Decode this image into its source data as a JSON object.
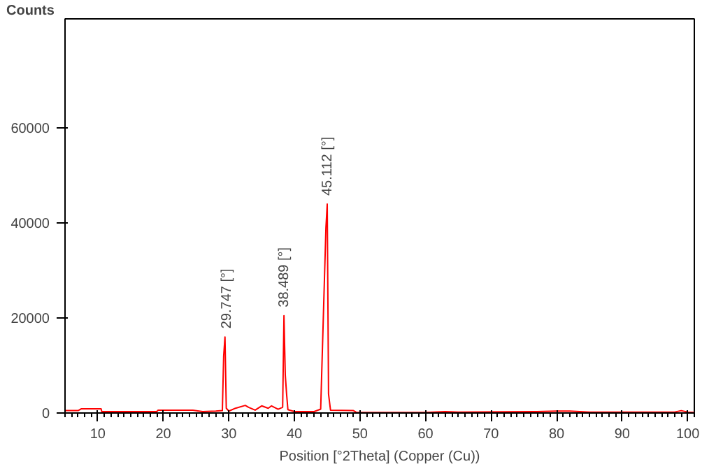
{
  "chart_data": {
    "type": "line",
    "ylabel": "Counts",
    "xlabel": "Position [°2Theta] (Copper (Cu))",
    "xlim": [
      5,
      101
    ],
    "ylim": [
      0,
      83000
    ],
    "xticks": [
      10,
      20,
      30,
      40,
      50,
      60,
      70,
      80,
      90,
      100
    ],
    "yticks": [
      0,
      20000,
      40000,
      60000
    ],
    "grid": false,
    "marker": "none",
    "line_style": "solid",
    "series": [
      {
        "color": "#ff0000",
        "x": [
          5,
          7,
          7.5,
          10.5,
          10.6,
          13,
          19,
          19.2,
          24.5,
          26,
          28,
          29.0,
          29.2,
          29.4,
          29.6,
          30,
          31,
          32.5,
          33,
          34,
          35,
          36,
          36.5,
          37.5,
          38.2,
          38.4,
          38.6,
          38.8,
          39,
          40,
          43,
          44,
          44.8,
          45.0,
          45.2,
          45.5,
          49,
          49.5,
          60,
          63,
          65,
          77,
          80,
          82,
          85,
          98,
          99,
          100,
          101
        ],
        "values": [
          500,
          500,
          900,
          900,
          300,
          300,
          300,
          600,
          600,
          300,
          400,
          500,
          12000,
          16000,
          1000,
          400,
          1000,
          1600,
          1200,
          600,
          1500,
          1000,
          1500,
          800,
          1200,
          20500,
          8000,
          4000,
          700,
          300,
          300,
          800,
          39000,
          44000,
          4000,
          600,
          500,
          100,
          100,
          300,
          200,
          300,
          400,
          400,
          200,
          200,
          500,
          200,
          100
        ]
      }
    ],
    "annotations": [
      {
        "text": "29.747 [°]",
        "x": 29.747,
        "y": 16000
      },
      {
        "text": "38.489 [°]",
        "x": 38.489,
        "y": 20500
      },
      {
        "text": "45.112 [°]",
        "x": 45.112,
        "y": 44000
      }
    ]
  }
}
